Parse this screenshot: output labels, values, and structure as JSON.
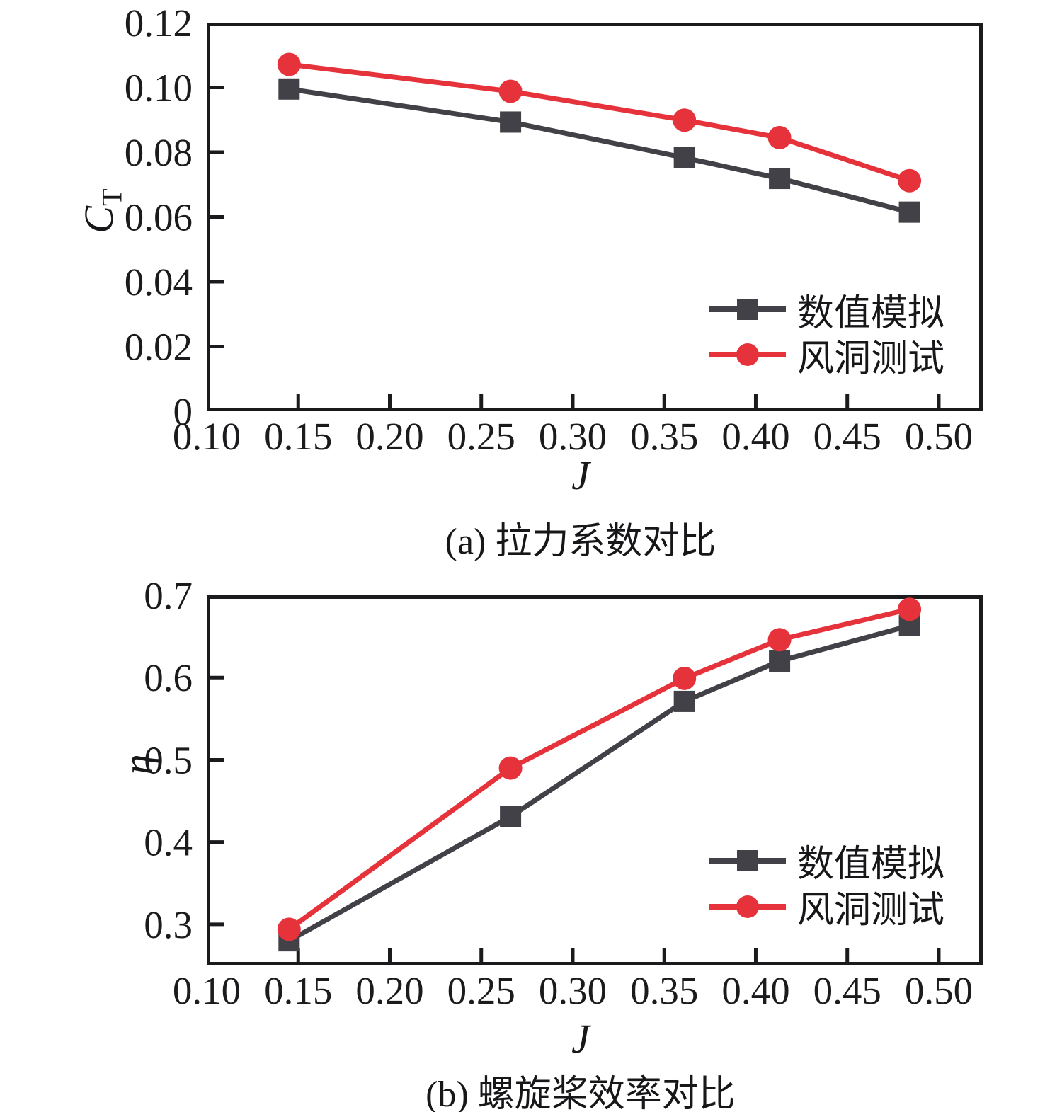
{
  "colors": {
    "simulation": "#414147",
    "wind_tunnel": "#e6333b",
    "axis": "#1b1b1e"
  },
  "chart_data": [
    {
      "type": "line",
      "caption": "(a) 拉力系数对比",
      "xlabel": "J",
      "ylabel": {
        "main": "C",
        "sub": "T"
      },
      "xlim": [
        0.1,
        0.524
      ],
      "ylim": [
        0,
        0.12
      ],
      "grid": false,
      "legend_position": "lower-right-inside",
      "x_ticks": {
        "values": [
          0.1,
          0.15,
          0.2,
          0.25,
          0.3,
          0.35,
          0.4,
          0.45,
          0.5
        ],
        "labels": [
          "0.10",
          "0.15",
          "0.20",
          "0.25",
          "0.30",
          "0.35",
          "0.40",
          "0.45",
          "0.50"
        ]
      },
      "y_ticks": {
        "values": [
          0,
          0.02,
          0.04,
          0.06,
          0.08,
          0.1,
          0.12
        ],
        "labels": [
          "0",
          "0.02",
          "0.04",
          "0.06",
          "0.08",
          "0.10",
          "0.12"
        ]
      },
      "x": [
        0.145,
        0.266,
        0.361,
        0.413,
        0.484
      ],
      "series": [
        {
          "name": "数值模拟",
          "marker": "square",
          "color_key": "simulation",
          "values": [
            0.0995,
            0.0893,
            0.0783,
            0.0719,
            0.0615
          ]
        },
        {
          "name": "风洞测试",
          "marker": "circle",
          "color_key": "wind_tunnel",
          "values": [
            0.1071,
            0.0988,
            0.0899,
            0.0845,
            0.0712
          ]
        }
      ]
    },
    {
      "type": "line",
      "caption": "(b) 螺旋桨效率对比",
      "xlabel": "J",
      "ylabel": {
        "main": "η",
        "sub": ""
      },
      "xlim": [
        0.1,
        0.524
      ],
      "ylim": [
        0.25,
        0.7
      ],
      "grid": false,
      "legend_position": "lower-right-inside",
      "x_ticks": {
        "values": [
          0.1,
          0.15,
          0.2,
          0.25,
          0.3,
          0.35,
          0.4,
          0.45,
          0.5
        ],
        "labels": [
          "0.10",
          "0.15",
          "0.20",
          "0.25",
          "0.30",
          "0.35",
          "0.40",
          "0.45",
          "0.50"
        ]
      },
      "y_ticks": {
        "values": [
          0.3,
          0.4,
          0.5,
          0.6,
          0.7
        ],
        "labels": [
          "0.3",
          "0.4",
          "0.5",
          "0.6",
          "0.7"
        ]
      },
      "x": [
        0.145,
        0.266,
        0.361,
        0.413,
        0.484
      ],
      "series": [
        {
          "name": "数值模拟",
          "marker": "square",
          "color_key": "simulation",
          "values": [
            0.28,
            0.431,
            0.571,
            0.62,
            0.663
          ]
        },
        {
          "name": "风洞测试",
          "marker": "circle",
          "color_key": "wind_tunnel",
          "values": [
            0.294,
            0.49,
            0.599,
            0.646,
            0.683
          ]
        }
      ]
    }
  ]
}
